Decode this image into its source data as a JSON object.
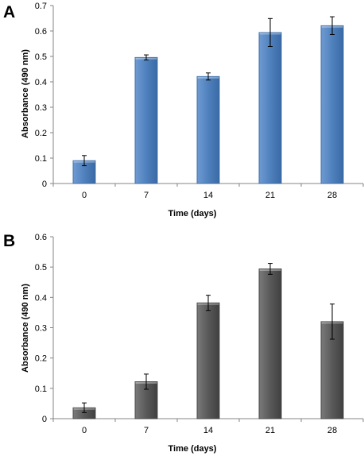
{
  "chart_data": [
    {
      "panel_label": "A",
      "type": "bar",
      "categories": [
        "0",
        "7",
        "14",
        "21",
        "28"
      ],
      "values": [
        0.09,
        0.496,
        0.421,
        0.594,
        0.621
      ],
      "errors": [
        0.02,
        0.01,
        0.014,
        0.055,
        0.035
      ],
      "xlabel": "Time (days)",
      "ylabel": "Absorbance (490 nm)",
      "ylim": [
        0,
        0.7
      ],
      "yticks": [
        "0",
        "0.1",
        "0.2",
        "0.3",
        "0.4",
        "0.5",
        "0.6",
        "0.7"
      ],
      "grid": false,
      "colors": {
        "bar": "#4f81bd",
        "bar_edge": "#3a6aa5",
        "bar_light": "#6f9bd2",
        "axis": "#868686",
        "error": "#000000"
      }
    },
    {
      "panel_label": "B",
      "type": "bar",
      "categories": [
        "0",
        "7",
        "14",
        "21",
        "28"
      ],
      "values": [
        0.036,
        0.122,
        0.382,
        0.494,
        0.32
      ],
      "errors": [
        0.016,
        0.025,
        0.025,
        0.018,
        0.058
      ],
      "xlabel": "Time (days)",
      "ylabel": "Absorbance (490 nm)",
      "ylim": [
        0,
        0.6
      ],
      "yticks": [
        "0",
        "0.1",
        "0.2",
        "0.3",
        "0.4",
        "0.5",
        "0.6"
      ],
      "grid": false,
      "colors": {
        "bar": "#595959",
        "bar_edge": "#404040",
        "bar_light": "#7a7a7a",
        "axis": "#868686",
        "error": "#000000"
      }
    }
  ]
}
